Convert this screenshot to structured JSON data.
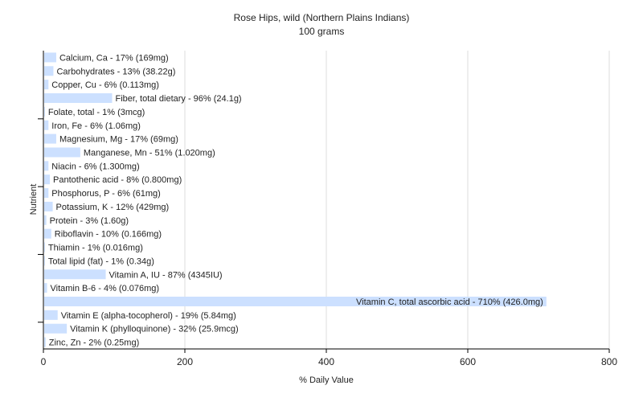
{
  "chart_data": {
    "type": "bar",
    "orientation": "horizontal",
    "title": "Rose Hips, wild (Northern Plains Indians)",
    "subtitle": "100 grams",
    "xlabel": "% Daily Value",
    "ylabel": "Nutrient",
    "xlim": [
      0,
      800
    ],
    "xticks": [
      0,
      200,
      400,
      600,
      800
    ],
    "grid": true,
    "bar_color": "#cce0ff",
    "categories": [
      "Calcium, Ca",
      "Carbohydrates",
      "Copper, Cu",
      "Fiber, total dietary",
      "Folate, total",
      "Iron, Fe",
      "Magnesium, Mg",
      "Manganese, Mn",
      "Niacin",
      "Pantothenic acid",
      "Phosphorus, P",
      "Potassium, K",
      "Protein",
      "Riboflavin",
      "Thiamin",
      "Total lipid (fat)",
      "Vitamin A, IU",
      "Vitamin B-6",
      "Vitamin C, total ascorbic acid",
      "Vitamin E (alpha-tocopherol)",
      "Vitamin K (phylloquinone)",
      "Zinc, Zn"
    ],
    "values": [
      17,
      13,
      6,
      96,
      1,
      6,
      17,
      51,
      6,
      8,
      6,
      12,
      3,
      10,
      1,
      1,
      87,
      4,
      710,
      19,
      32,
      2
    ],
    "labels": [
      "Calcium, Ca - 17% (169mg)",
      "Carbohydrates - 13% (38.22g)",
      "Copper, Cu - 6% (0.113mg)",
      "Fiber, total dietary - 96% (24.1g)",
      "Folate, total - 1% (3mcg)",
      "Iron, Fe - 6% (1.06mg)",
      "Magnesium, Mg - 17% (69mg)",
      "Manganese, Mn - 51% (1.020mg)",
      "Niacin - 6% (1.300mg)",
      "Pantothenic acid - 8% (0.800mg)",
      "Phosphorus, P - 6% (61mg)",
      "Potassium, K - 12% (429mg)",
      "Protein - 3% (1.60g)",
      "Riboflavin - 10% (0.166mg)",
      "Thiamin - 1% (0.016mg)",
      "Total lipid (fat) - 1% (0.34g)",
      "Vitamin A, IU - 87% (4345IU)",
      "Vitamin B-6 - 4% (0.076mg)",
      "Vitamin C, total ascorbic acid - 710% (426.0mg)",
      "Vitamin E (alpha-tocopherol) - 19% (5.84mg)",
      "Vitamin K (phylloquinone) - 32% (25.9mcg)",
      "Zinc, Zn - 2% (0.25mg)"
    ]
  }
}
